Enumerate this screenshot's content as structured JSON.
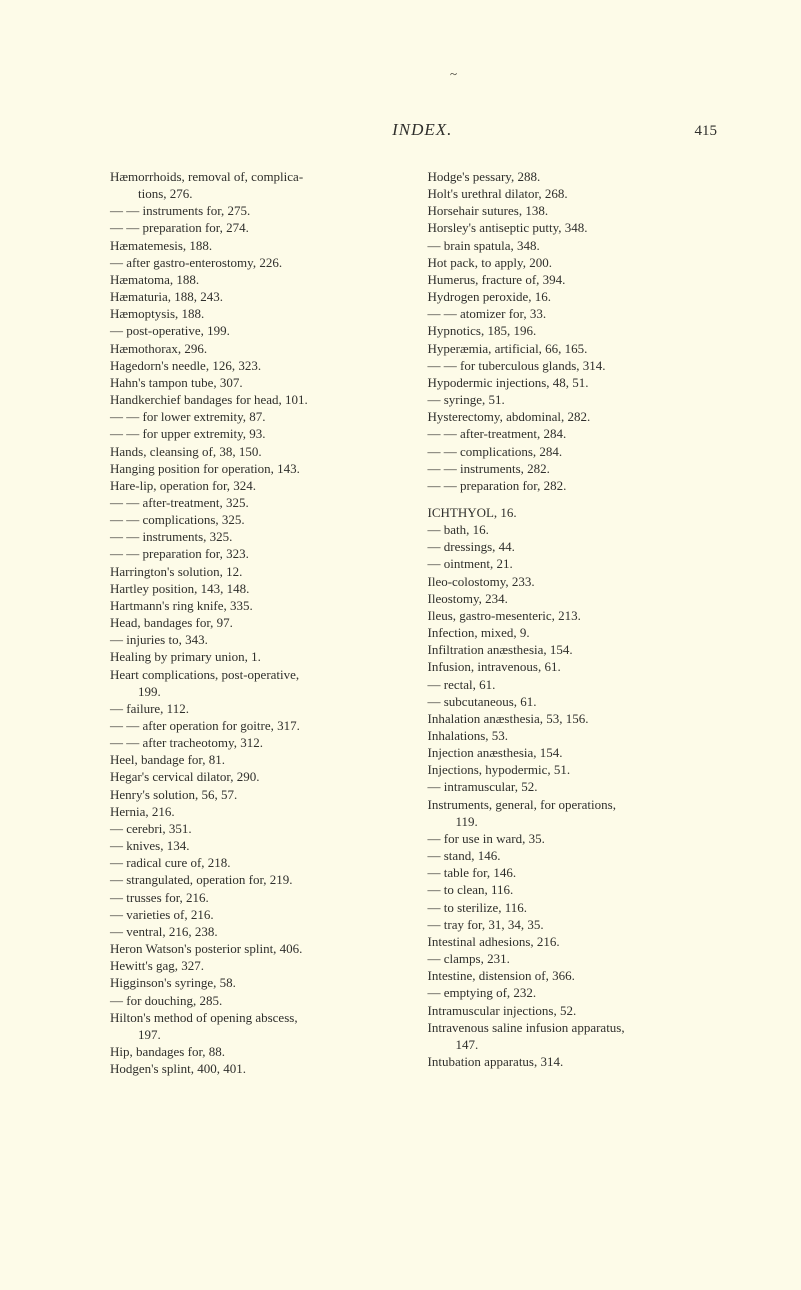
{
  "sweep_mark": "~",
  "header": {
    "title": "INDEX.",
    "page_number": "415"
  },
  "columns": {
    "left": [
      {
        "t": "Hæmorrhoids, removal of, complica-",
        "l": 0
      },
      {
        "t": "tions, 276.",
        "l": 2
      },
      {
        "t": "— — instruments for, 275.",
        "l": 0
      },
      {
        "t": "— — preparation for, 274.",
        "l": 0
      },
      {
        "t": "Hæmatemesis, 188.",
        "l": 0
      },
      {
        "t": "— after gastro-enterostomy, 226.",
        "l": 0
      },
      {
        "t": "Hæmatoma, 188.",
        "l": 0
      },
      {
        "t": "Hæmaturia, 188, 243.",
        "l": 0
      },
      {
        "t": "Hæmoptysis, 188.",
        "l": 0
      },
      {
        "t": "— post-operative, 199.",
        "l": 0
      },
      {
        "t": "Hæmothorax, 296.",
        "l": 0
      },
      {
        "t": "Hagedorn's needle, 126, 323.",
        "l": 0
      },
      {
        "t": "Hahn's tampon tube, 307.",
        "l": 0
      },
      {
        "t": "Handkerchief bandages for head, 101.",
        "l": 0
      },
      {
        "t": "— — for lower extremity, 87.",
        "l": 0
      },
      {
        "t": "— — for upper extremity, 93.",
        "l": 0
      },
      {
        "t": "Hands, cleansing of, 38, 150.",
        "l": 0
      },
      {
        "t": "Hanging position for operation, 143.",
        "l": 0
      },
      {
        "t": "Hare-lip, operation for, 324.",
        "l": 0
      },
      {
        "t": "— — after-treatment, 325.",
        "l": 0
      },
      {
        "t": "— — complications, 325.",
        "l": 0
      },
      {
        "t": "— — instruments, 325.",
        "l": 0
      },
      {
        "t": "— — preparation for, 323.",
        "l": 0
      },
      {
        "t": "Harrington's solution, 12.",
        "l": 0
      },
      {
        "t": "Hartley position, 143, 148.",
        "l": 0
      },
      {
        "t": "Hartmann's ring knife, 335.",
        "l": 0
      },
      {
        "t": "Head, bandages for, 97.",
        "l": 0
      },
      {
        "t": "— injuries to, 343.",
        "l": 0
      },
      {
        "t": "Healing by primary union, 1.",
        "l": 0
      },
      {
        "t": "Heart complications, post-operative,",
        "l": 0
      },
      {
        "t": "199.",
        "l": 2
      },
      {
        "t": "— failure, 112.",
        "l": 0
      },
      {
        "t": "— — after operation for goitre, 317.",
        "l": 0
      },
      {
        "t": "— — after tracheotomy, 312.",
        "l": 0
      },
      {
        "t": "Heel, bandage for, 81.",
        "l": 0
      },
      {
        "t": "Hegar's cervical dilator, 290.",
        "l": 0
      },
      {
        "t": "Henry's solution, 56, 57.",
        "l": 0
      },
      {
        "t": "Hernia, 216.",
        "l": 0
      },
      {
        "t": "— cerebri, 351.",
        "l": 0
      },
      {
        "t": "— knives, 134.",
        "l": 0
      },
      {
        "t": "— radical cure of, 218.",
        "l": 0
      },
      {
        "t": "— strangulated, operation for, 219.",
        "l": 0
      },
      {
        "t": "— trusses for, 216.",
        "l": 0
      },
      {
        "t": "— varieties of, 216.",
        "l": 0
      },
      {
        "t": "— ventral, 216, 238.",
        "l": 0
      },
      {
        "t": "Heron Watson's posterior splint, 406.",
        "l": 0
      },
      {
        "t": "Hewitt's gag, 327.",
        "l": 0
      },
      {
        "t": "Higginson's syringe, 58.",
        "l": 0
      },
      {
        "t": "— for douching, 285.",
        "l": 0
      },
      {
        "t": "Hilton's method of opening abscess,",
        "l": 0
      },
      {
        "t": "197.",
        "l": 2
      },
      {
        "t": "Hip, bandages for, 88.",
        "l": 0
      },
      {
        "t": "Hodgen's splint, 400, 401.",
        "l": 0
      }
    ],
    "right": [
      {
        "t": "Hodge's pessary, 288.",
        "l": 0
      },
      {
        "t": "Holt's urethral dilator, 268.",
        "l": 0
      },
      {
        "t": "Horsehair sutures, 138.",
        "l": 0
      },
      {
        "t": "Horsley's antiseptic putty, 348.",
        "l": 0
      },
      {
        "t": "— brain spatula, 348.",
        "l": 0
      },
      {
        "t": "Hot pack, to apply, 200.",
        "l": 0
      },
      {
        "t": "Humerus, fracture of, 394.",
        "l": 0
      },
      {
        "t": "Hydrogen peroxide, 16.",
        "l": 0
      },
      {
        "t": "— — atomizer for, 33.",
        "l": 0
      },
      {
        "t": "Hypnotics, 185, 196.",
        "l": 0
      },
      {
        "t": "Hyperæmia, artificial, 66, 165.",
        "l": 0
      },
      {
        "t": "— — for tuberculous glands, 314.",
        "l": 0
      },
      {
        "t": "Hypodermic injections, 48, 51.",
        "l": 0
      },
      {
        "t": "— syringe, 51.",
        "l": 0
      },
      {
        "t": "Hysterectomy, abdominal, 282.",
        "l": 0
      },
      {
        "t": "— — after-treatment, 284.",
        "l": 0
      },
      {
        "t": "— — complications, 284.",
        "l": 0
      },
      {
        "t": "— — instruments, 282.",
        "l": 0
      },
      {
        "t": "— — preparation for, 282.",
        "l": 0
      },
      {
        "t": "",
        "l": 0,
        "spacer": true
      },
      {
        "t": "ICHTHYOL, 16.",
        "l": 0
      },
      {
        "t": "— bath, 16.",
        "l": 0
      },
      {
        "t": "— dressings, 44.",
        "l": 0
      },
      {
        "t": "— ointment, 21.",
        "l": 0
      },
      {
        "t": "Ileo-colostomy, 233.",
        "l": 0
      },
      {
        "t": "Ileostomy, 234.",
        "l": 0
      },
      {
        "t": "Ileus, gastro-mesenteric, 213.",
        "l": 0
      },
      {
        "t": "Infection, mixed, 9.",
        "l": 0
      },
      {
        "t": "Infiltration anæsthesia, 154.",
        "l": 0
      },
      {
        "t": "Infusion, intravenous, 61.",
        "l": 0
      },
      {
        "t": "— rectal, 61.",
        "l": 0
      },
      {
        "t": "— subcutaneous, 61.",
        "l": 0
      },
      {
        "t": "Inhalation anæsthesia, 53, 156.",
        "l": 0
      },
      {
        "t": "Inhalations, 53.",
        "l": 0
      },
      {
        "t": "Injection anæsthesia, 154.",
        "l": 0
      },
      {
        "t": "Injections, hypodermic, 51.",
        "l": 0
      },
      {
        "t": "— intramuscular, 52.",
        "l": 0
      },
      {
        "t": "Instruments, general, for operations,",
        "l": 0
      },
      {
        "t": "119.",
        "l": 2
      },
      {
        "t": "— for use in ward, 35.",
        "l": 0
      },
      {
        "t": "— stand, 146.",
        "l": 0
      },
      {
        "t": "— table for, 146.",
        "l": 0
      },
      {
        "t": "— to clean, 116.",
        "l": 0
      },
      {
        "t": "— to sterilize, 116.",
        "l": 0
      },
      {
        "t": "— tray for, 31, 34, 35.",
        "l": 0
      },
      {
        "t": "Intestinal adhesions, 216.",
        "l": 0
      },
      {
        "t": "— clamps, 231.",
        "l": 0
      },
      {
        "t": "Intestine, distension of, 366.",
        "l": 0
      },
      {
        "t": "— emptying of, 232.",
        "l": 0
      },
      {
        "t": "Intramuscular injections, 52.",
        "l": 0
      },
      {
        "t": "Intravenous saline infusion apparatus,",
        "l": 0
      },
      {
        "t": "147.",
        "l": 2
      },
      {
        "t": "Intubation apparatus, 314.",
        "l": 0
      }
    ]
  }
}
